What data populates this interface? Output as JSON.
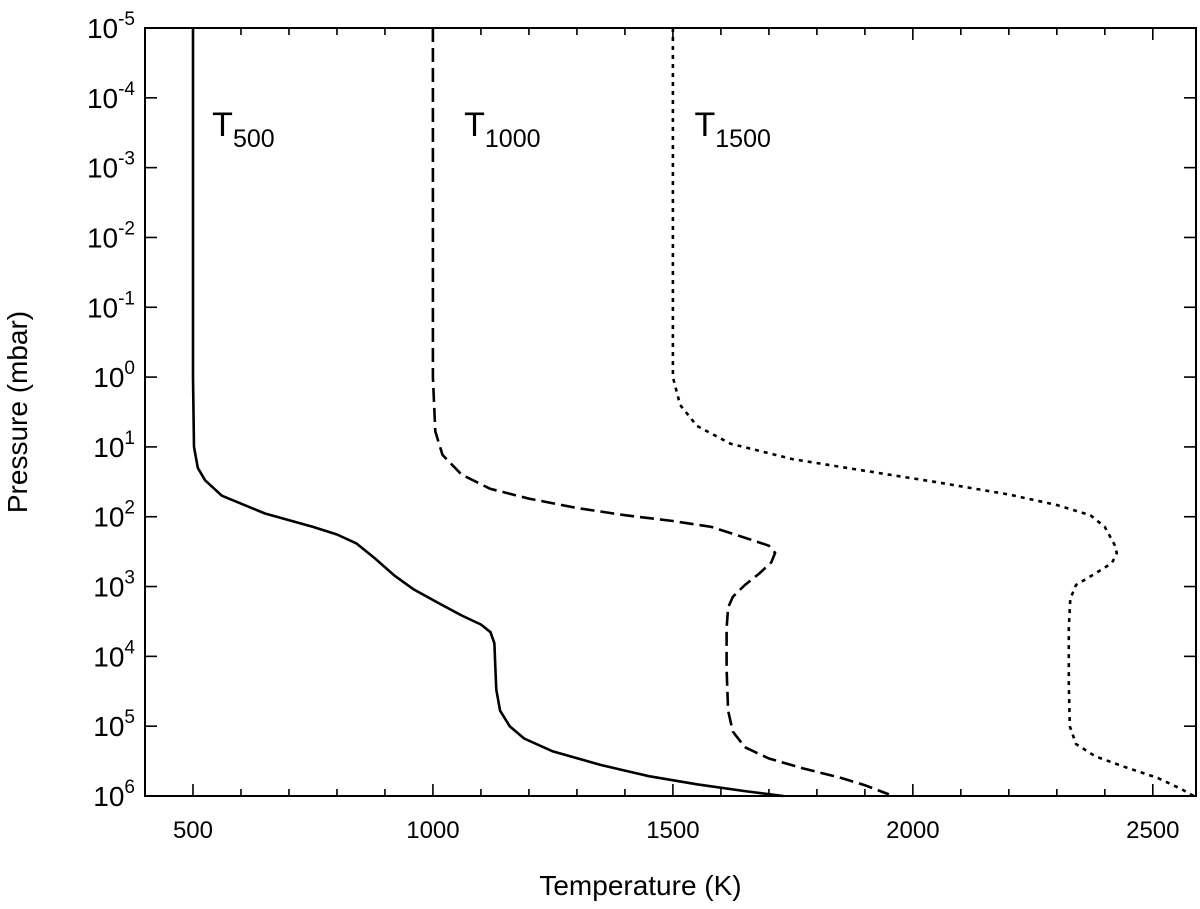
{
  "chart_data": {
    "type": "line",
    "title": "",
    "xlabel": "Temperature (K)",
    "ylabel": "Pressure (mbar)",
    "xlim": [
      400,
      2590
    ],
    "ylim": [
      1e-05,
      1000000
    ],
    "yscale": "log",
    "y_inverted": true,
    "grid": false,
    "legend": "none",
    "x_ticks": [
      500,
      1000,
      1500,
      2000,
      2500
    ],
    "x_tick_labels": [
      "500",
      "1000",
      "1500",
      "2000",
      "2500"
    ],
    "y_tick_base": "10",
    "y_tick_exponents": [
      "-5",
      "-4",
      "-3",
      "-2",
      "-1",
      "0",
      "1",
      "2",
      "3",
      "4",
      "5",
      "6"
    ],
    "series": [
      {
        "name": "T",
        "name_subscript": "500",
        "line_style": "solid",
        "color": "#000000",
        "points": [
          [
            500,
            1e-05
          ],
          [
            500,
            1
          ],
          [
            502,
            10
          ],
          [
            510,
            20
          ],
          [
            525,
            30
          ],
          [
            560,
            50
          ],
          [
            650,
            90
          ],
          [
            750,
            140
          ],
          [
            800,
            180
          ],
          [
            840,
            240
          ],
          [
            880,
            400
          ],
          [
            920,
            700
          ],
          [
            960,
            1100
          ],
          [
            1010,
            1700
          ],
          [
            1060,
            2600
          ],
          [
            1100,
            3500
          ],
          [
            1120,
            4500
          ],
          [
            1128,
            6500
          ],
          [
            1130,
            14000
          ],
          [
            1132,
            30000
          ],
          [
            1140,
            60000
          ],
          [
            1160,
            100000
          ],
          [
            1190,
            150000
          ],
          [
            1250,
            230000
          ],
          [
            1350,
            360000
          ],
          [
            1450,
            520000
          ],
          [
            1550,
            680000
          ],
          [
            1650,
            850000
          ],
          [
            1730,
            1000000
          ]
        ]
      },
      {
        "name": "T",
        "name_subscript": "1000",
        "line_style": "dashed",
        "color": "#000000",
        "points": [
          [
            1000,
            1e-05
          ],
          [
            1000,
            1
          ],
          [
            1005,
            6
          ],
          [
            1020,
            13
          ],
          [
            1060,
            25
          ],
          [
            1120,
            40
          ],
          [
            1200,
            55
          ],
          [
            1300,
            75
          ],
          [
            1400,
            95
          ],
          [
            1500,
            115
          ],
          [
            1580,
            140
          ],
          [
            1650,
            200
          ],
          [
            1700,
            260
          ],
          [
            1713,
            330
          ],
          [
            1705,
            450
          ],
          [
            1680,
            650
          ],
          [
            1650,
            950
          ],
          [
            1625,
            1400
          ],
          [
            1615,
            2000
          ],
          [
            1612,
            4000
          ],
          [
            1612,
            15000
          ],
          [
            1615,
            60000
          ],
          [
            1625,
            120000
          ],
          [
            1650,
            200000
          ],
          [
            1700,
            290000
          ],
          [
            1770,
            400000
          ],
          [
            1850,
            550000
          ],
          [
            1900,
            700000
          ],
          [
            1950,
            950000
          ]
        ]
      },
      {
        "name": "T",
        "name_subscript": "1500",
        "line_style": "dotted",
        "color": "#000000",
        "points": [
          [
            1500,
            1e-05
          ],
          [
            1500,
            1
          ],
          [
            1515,
            2.5
          ],
          [
            1550,
            5
          ],
          [
            1620,
            9
          ],
          [
            1750,
            15
          ],
          [
            1900,
            22
          ],
          [
            2050,
            32
          ],
          [
            2200,
            48
          ],
          [
            2300,
            68
          ],
          [
            2370,
            95
          ],
          [
            2400,
            140
          ],
          [
            2420,
            250
          ],
          [
            2425,
            330
          ],
          [
            2415,
            460
          ],
          [
            2380,
            650
          ],
          [
            2340,
            950
          ],
          [
            2328,
            1500
          ],
          [
            2325,
            4000
          ],
          [
            2325,
            25000
          ],
          [
            2327,
            100000
          ],
          [
            2340,
            180000
          ],
          [
            2380,
            270000
          ],
          [
            2440,
            380000
          ],
          [
            2510,
            550000
          ],
          [
            2560,
            800000
          ],
          [
            2585,
            1000000
          ]
        ]
      }
    ],
    "annotations": [
      {
        "text": "T",
        "subscript": "500",
        "x": 540,
        "y": 0.00035
      },
      {
        "text": "T",
        "subscript": "1000",
        "x": 1065,
        "y": 0.00035
      },
      {
        "text": "T",
        "subscript": "1500",
        "x": 1545,
        "y": 0.00035
      }
    ]
  }
}
